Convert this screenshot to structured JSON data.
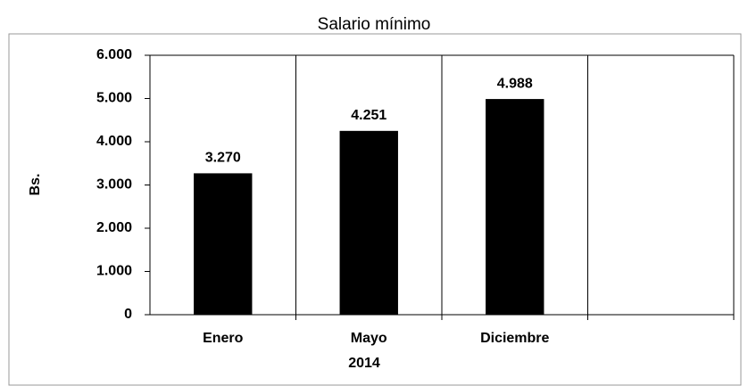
{
  "chart_data": {
    "type": "bar",
    "title": "Salario mínimo",
    "ylabel": "Bs.",
    "xlabel": "2014",
    "categories": [
      "Enero",
      "Mayo",
      "Diciembre",
      null
    ],
    "values": [
      3270,
      4251,
      4988,
      null
    ],
    "value_labels": [
      "3.270",
      "4.251",
      "4.988",
      null
    ],
    "color": "#000000",
    "ylim": [
      0,
      6000
    ],
    "yticks": [
      0,
      {
        "value": 1000,
        "label": "1.000"
      },
      {
        "value": 2000,
        "label": "2.000"
      },
      {
        "value": 3000,
        "label": "3.000"
      },
      {
        "value": 4000,
        "label": "4.000"
      },
      {
        "value": 5000,
        "label": "5.000"
      },
      {
        "value": 6000,
        "label": "6.000"
      }
    ]
  }
}
